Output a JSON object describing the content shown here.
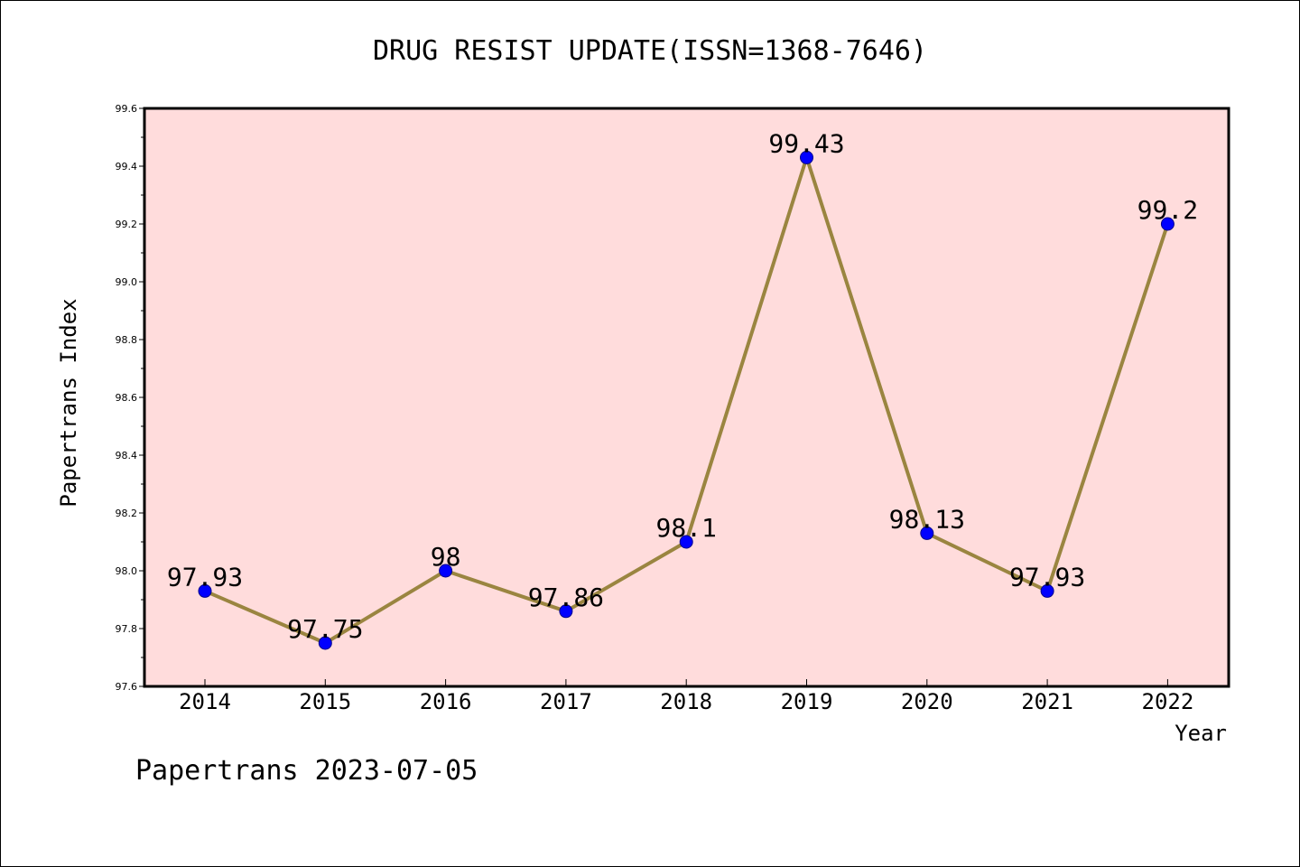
{
  "chart_data": {
    "type": "line",
    "title": "DRUG RESIST UPDATE(ISSN=1368-7646)",
    "xlabel": "Year",
    "ylabel": "Papertrans Index",
    "categories": [
      "2014",
      "2015",
      "2016",
      "2017",
      "2018",
      "2019",
      "2020",
      "2021",
      "2022"
    ],
    "series": [
      {
        "values": [
          97.93,
          97.75,
          98.0,
          97.86,
          98.1,
          99.43,
          98.13,
          97.93,
          99.2
        ],
        "labels": [
          "97.93",
          "97.75",
          "98",
          "97.86",
          "98.1",
          "99.43",
          "98.13",
          "97.93",
          "99.2"
        ]
      }
    ],
    "ylim": [
      97.6,
      99.6
    ],
    "yticks": [
      "97.6",
      "97.8",
      "98.0",
      "98.2",
      "98.4",
      "98.6",
      "98.8",
      "99.0",
      "99.2",
      "99.4",
      "99.6"
    ],
    "grid": false,
    "colors": {
      "plot_background": "#ffdcdc",
      "line": "#9a8540",
      "marker": "#0000ff",
      "axes": "#000000"
    }
  },
  "footer": "Papertrans 2023-07-05"
}
